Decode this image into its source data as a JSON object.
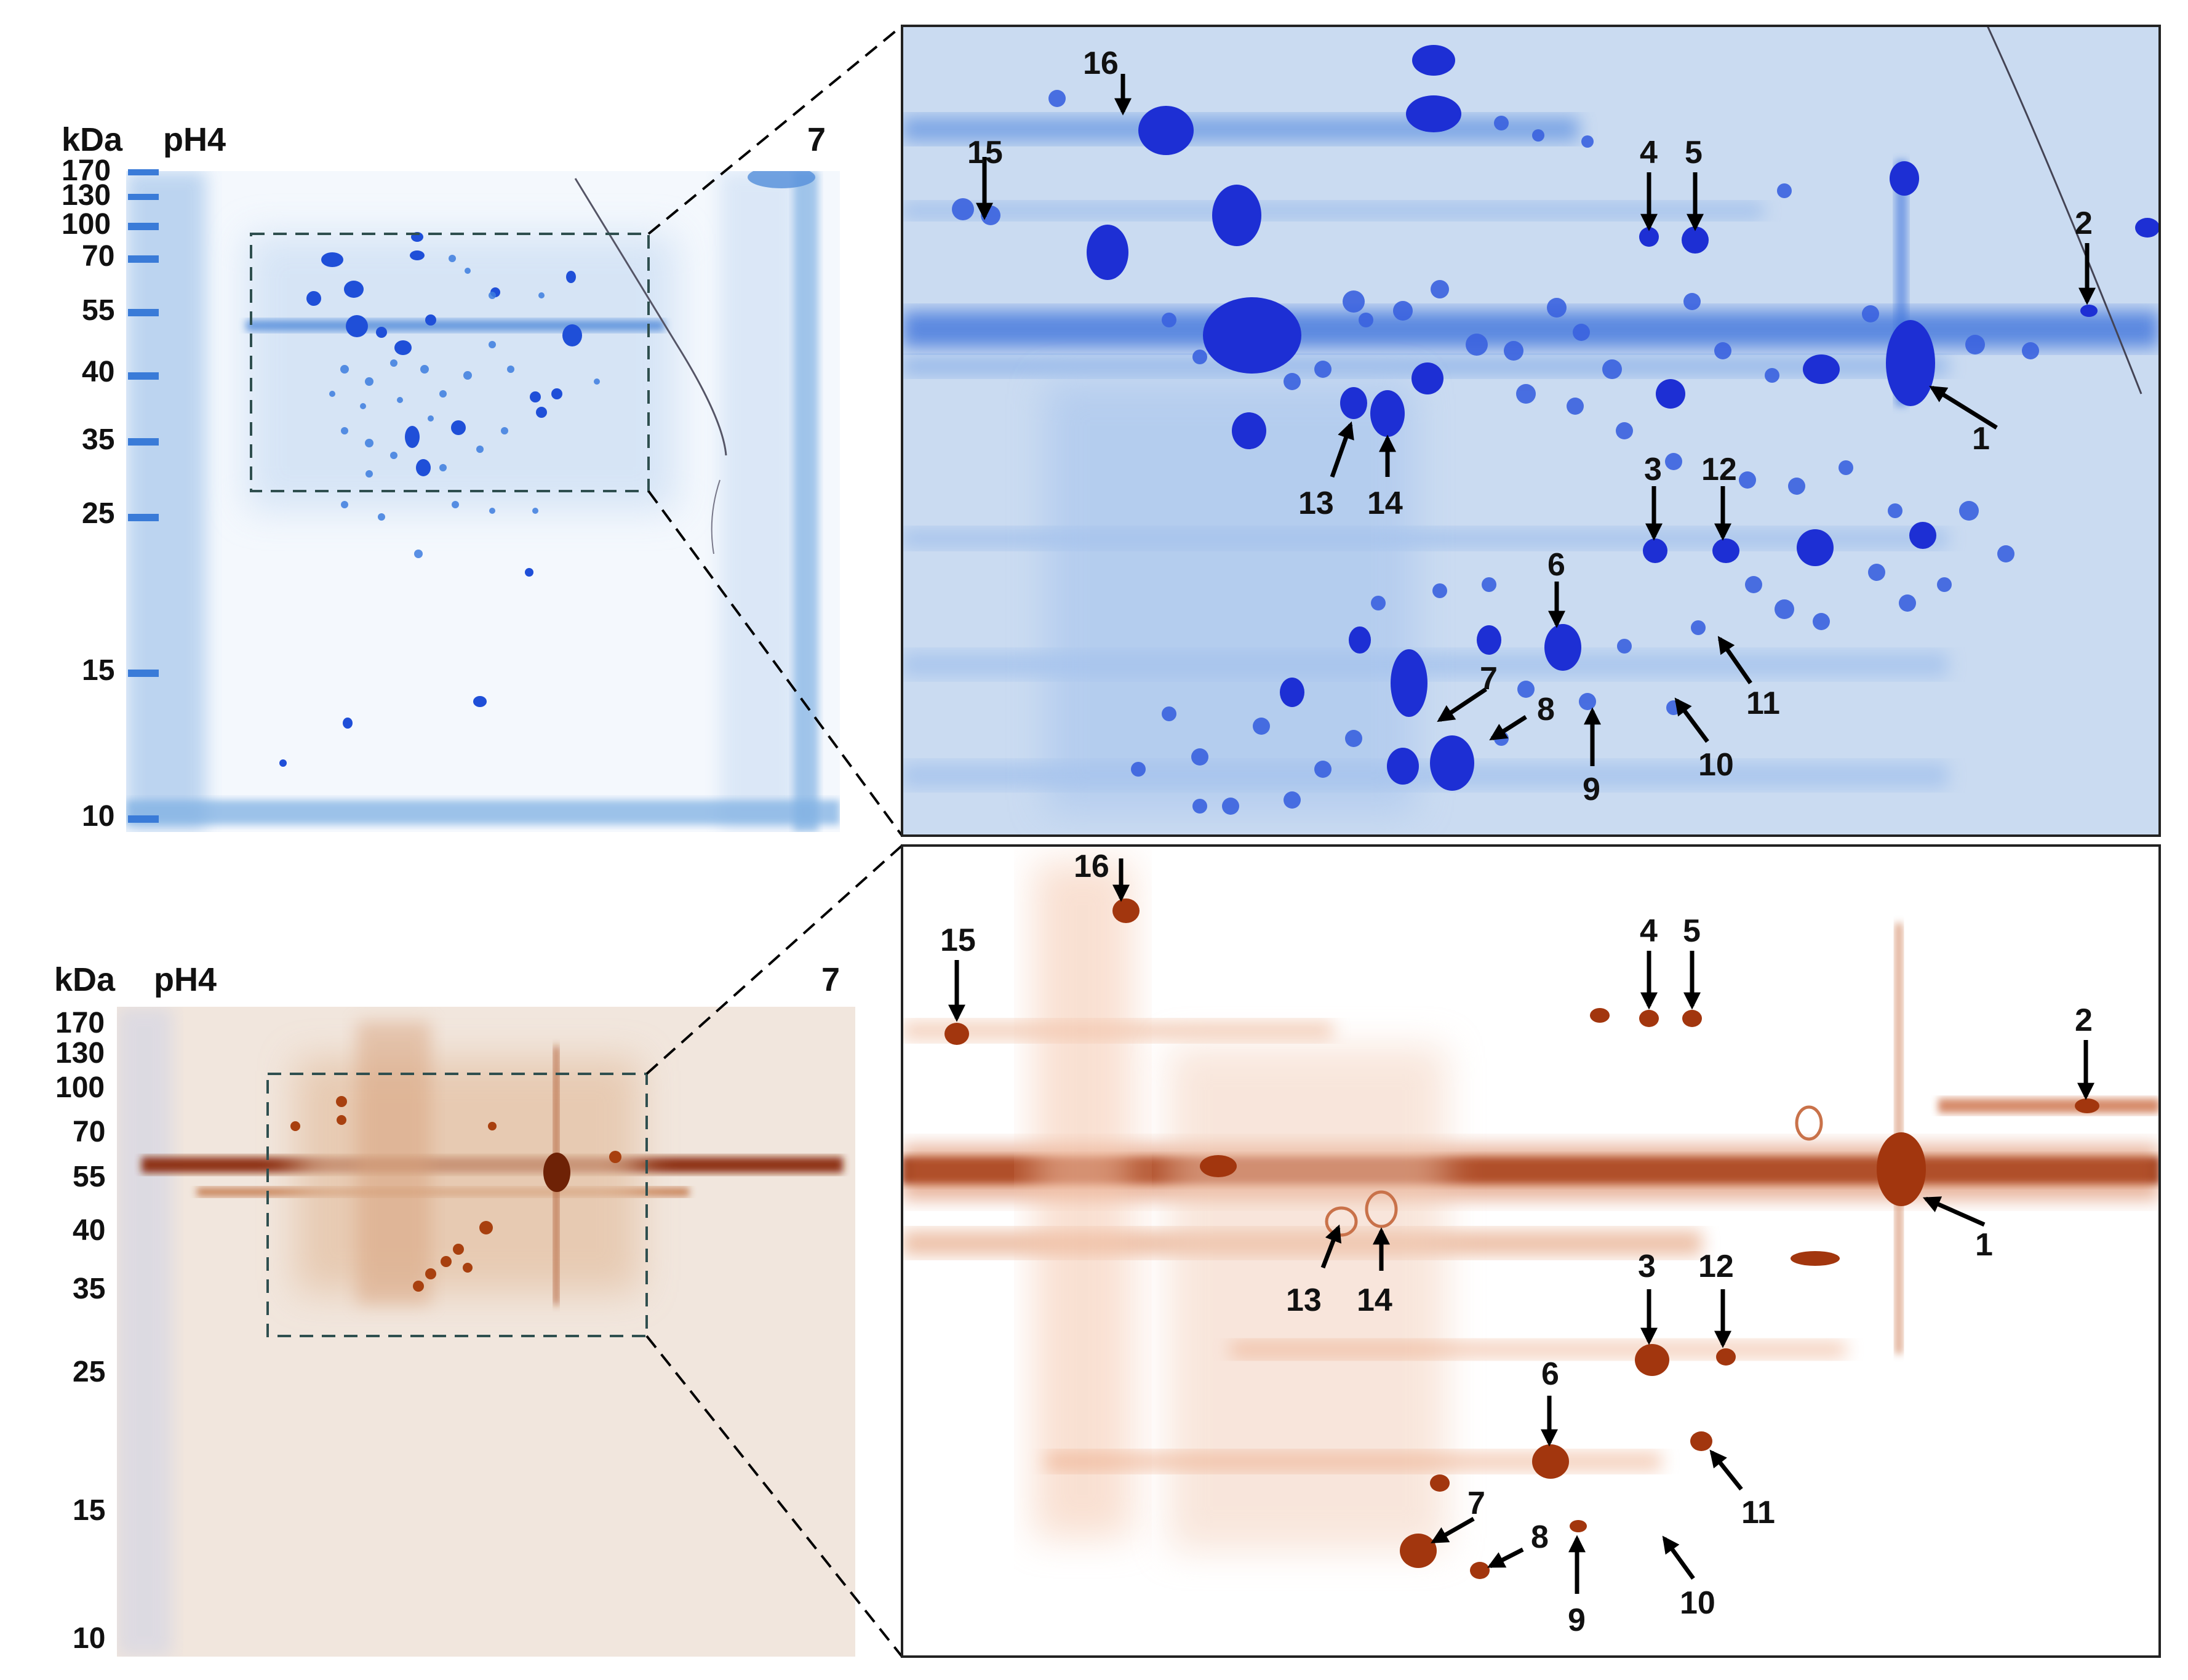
{
  "figure": {
    "top_panel": {
      "kda_label": "kDa",
      "ph_left": "pH4",
      "ph_right": "7",
      "mw_markers": [
        "170",
        "130",
        "100",
        "70",
        "55",
        "40",
        "35",
        "25",
        "15",
        "10"
      ]
    },
    "bottom_panel": {
      "kda_label": "kDa",
      "ph_left": "pH4",
      "ph_right": "7",
      "mw_markers": [
        "170",
        "130",
        "100",
        "70",
        "55",
        "40",
        "35",
        "25",
        "15",
        "10"
      ]
    },
    "spot_numbers": [
      "1",
      "2",
      "3",
      "4",
      "5",
      "6",
      "7",
      "8",
      "9",
      "10",
      "11",
      "12",
      "13",
      "14",
      "15",
      "16"
    ],
    "colors": {
      "coomassie_dark": "#1e2fd6",
      "coomassie_light": "#9fc6ec",
      "silver_dark": "#8a2a08",
      "silver_light": "#efb99a",
      "zoom_box": "#2f4f4f"
    }
  }
}
